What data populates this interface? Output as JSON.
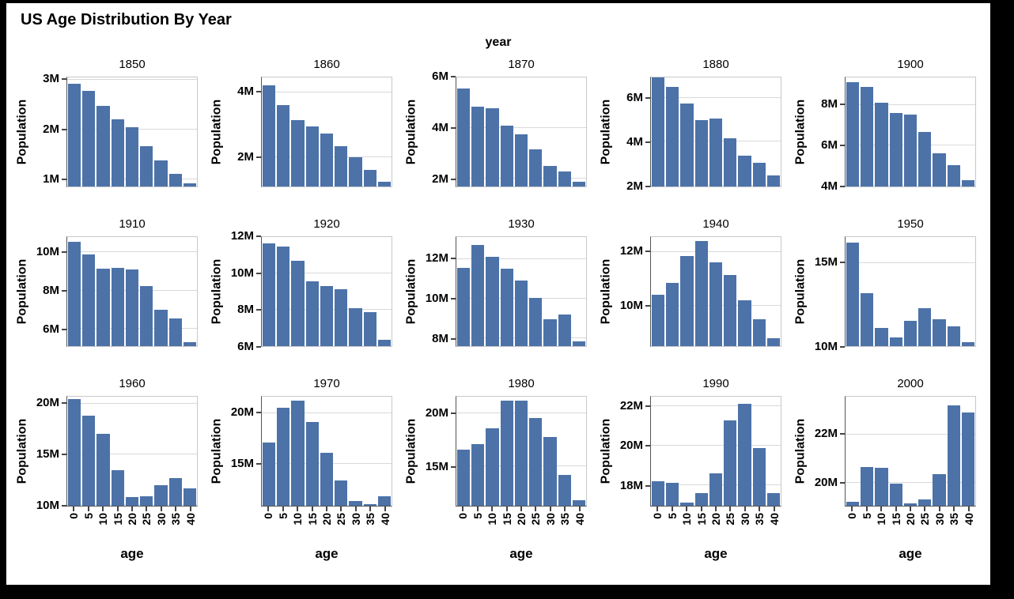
{
  "page": {
    "title": "US Age Distribution By Year",
    "facet_header": "year"
  },
  "colors": {
    "bar": "#4c72a8",
    "grid": "#d9d9d9",
    "axis": "#444444",
    "frame": "#000000",
    "background": "#ffffff"
  },
  "chart_data": {
    "type": "bar",
    "layout": "small-multiples 5x3 faceted by year",
    "title": "US Age Distribution By Year",
    "facet_field": "year",
    "xlabel": "age",
    "ylabel": "Population",
    "unit": "millions",
    "tick_suffix": "M",
    "x_categories": [
      "0",
      "5",
      "10",
      "15",
      "20",
      "25",
      "30",
      "35",
      "40"
    ],
    "grid": true,
    "facets": [
      {
        "year": "1850",
        "values": [
          2.93,
          2.78,
          2.48,
          2.2,
          2.04,
          1.66,
          1.38,
          1.1,
          0.92
        ],
        "yticks": [
          1,
          2,
          3
        ],
        "ylim": [
          0.85,
          3.05
        ]
      },
      {
        "year": "1860",
        "values": [
          4.2,
          3.6,
          3.15,
          2.95,
          2.72,
          2.35,
          2.0,
          1.6,
          1.25
        ],
        "yticks": [
          2,
          4
        ],
        "ylim": [
          1.1,
          4.45
        ]
      },
      {
        "year": "1870",
        "values": [
          5.55,
          4.85,
          4.8,
          4.1,
          3.75,
          3.15,
          2.5,
          2.3,
          1.9
        ],
        "yticks": [
          2,
          4,
          6
        ],
        "ylim": [
          1.7,
          6.0
        ]
      },
      {
        "year": "1880",
        "values": [
          6.95,
          6.5,
          5.75,
          5.0,
          5.05,
          4.15,
          3.35,
          3.05,
          2.45
        ],
        "yticks": [
          2,
          4,
          6
        ],
        "ylim": [
          1.95,
          6.95
        ]
      },
      {
        "year": "1900",
        "values": [
          9.1,
          8.9,
          8.1,
          7.6,
          7.5,
          6.65,
          5.6,
          5.0,
          4.25
        ],
        "yticks": [
          4,
          6,
          8
        ],
        "ylim": [
          3.95,
          9.35
        ]
      },
      {
        "year": "1910",
        "values": [
          10.55,
          9.9,
          9.15,
          9.2,
          9.1,
          8.25,
          7.0,
          6.55,
          5.3
        ],
        "yticks": [
          6,
          8,
          10
        ],
        "ylim": [
          5.1,
          10.8
        ]
      },
      {
        "year": "1920",
        "values": [
          11.65,
          11.5,
          10.7,
          9.55,
          9.3,
          9.15,
          8.1,
          7.85,
          6.35
        ],
        "yticks": [
          6,
          8,
          10,
          12
        ],
        "ylim": [
          6.0,
          12.0
        ]
      },
      {
        "year": "1930",
        "values": [
          11.55,
          12.7,
          12.1,
          11.5,
          10.9,
          10.05,
          8.95,
          9.2,
          7.85
        ],
        "yticks": [
          8,
          10,
          12
        ],
        "ylim": [
          7.6,
          13.1
        ]
      },
      {
        "year": "1940",
        "values": [
          10.4,
          10.85,
          11.85,
          12.4,
          11.6,
          11.15,
          10.2,
          9.5,
          8.8
        ],
        "yticks": [
          10,
          12
        ],
        "ylim": [
          8.5,
          12.55
        ]
      },
      {
        "year": "1950",
        "values": [
          16.2,
          13.2,
          11.1,
          10.5,
          11.5,
          12.3,
          11.6,
          11.2,
          10.25
        ],
        "yticks": [
          10,
          15
        ],
        "ylim": [
          10.0,
          16.55
        ]
      },
      {
        "year": "1960",
        "values": [
          20.5,
          18.8,
          17.0,
          13.4,
          10.8,
          10.85,
          11.95,
          12.65,
          11.6
        ],
        "yticks": [
          10,
          15,
          20
        ],
        "ylim": [
          9.9,
          20.7
        ]
      },
      {
        "year": "1970",
        "values": [
          17.1,
          20.5,
          21.2,
          19.1,
          16.1,
          13.4,
          11.4,
          11.05,
          11.8
        ],
        "yticks": [
          15,
          20
        ],
        "ylim": [
          10.9,
          21.6
        ]
      },
      {
        "year": "1980",
        "values": [
          16.6,
          17.1,
          18.6,
          21.2,
          21.2,
          19.6,
          17.8,
          14.2,
          11.8
        ],
        "yticks": [
          15,
          20
        ],
        "ylim": [
          11.3,
          21.6
        ]
      },
      {
        "year": "1990",
        "values": [
          18.2,
          18.1,
          17.1,
          17.6,
          18.6,
          21.3,
          22.15,
          19.9,
          17.6
        ],
        "yticks": [
          18,
          20,
          22
        ],
        "ylim": [
          16.95,
          22.5
        ]
      },
      {
        "year": "2000",
        "values": [
          19.2,
          20.65,
          20.6,
          19.95,
          19.15,
          19.3,
          20.35,
          23.2,
          22.9
        ],
        "yticks": [
          20,
          22
        ],
        "ylim": [
          19.05,
          23.55
        ]
      }
    ]
  }
}
